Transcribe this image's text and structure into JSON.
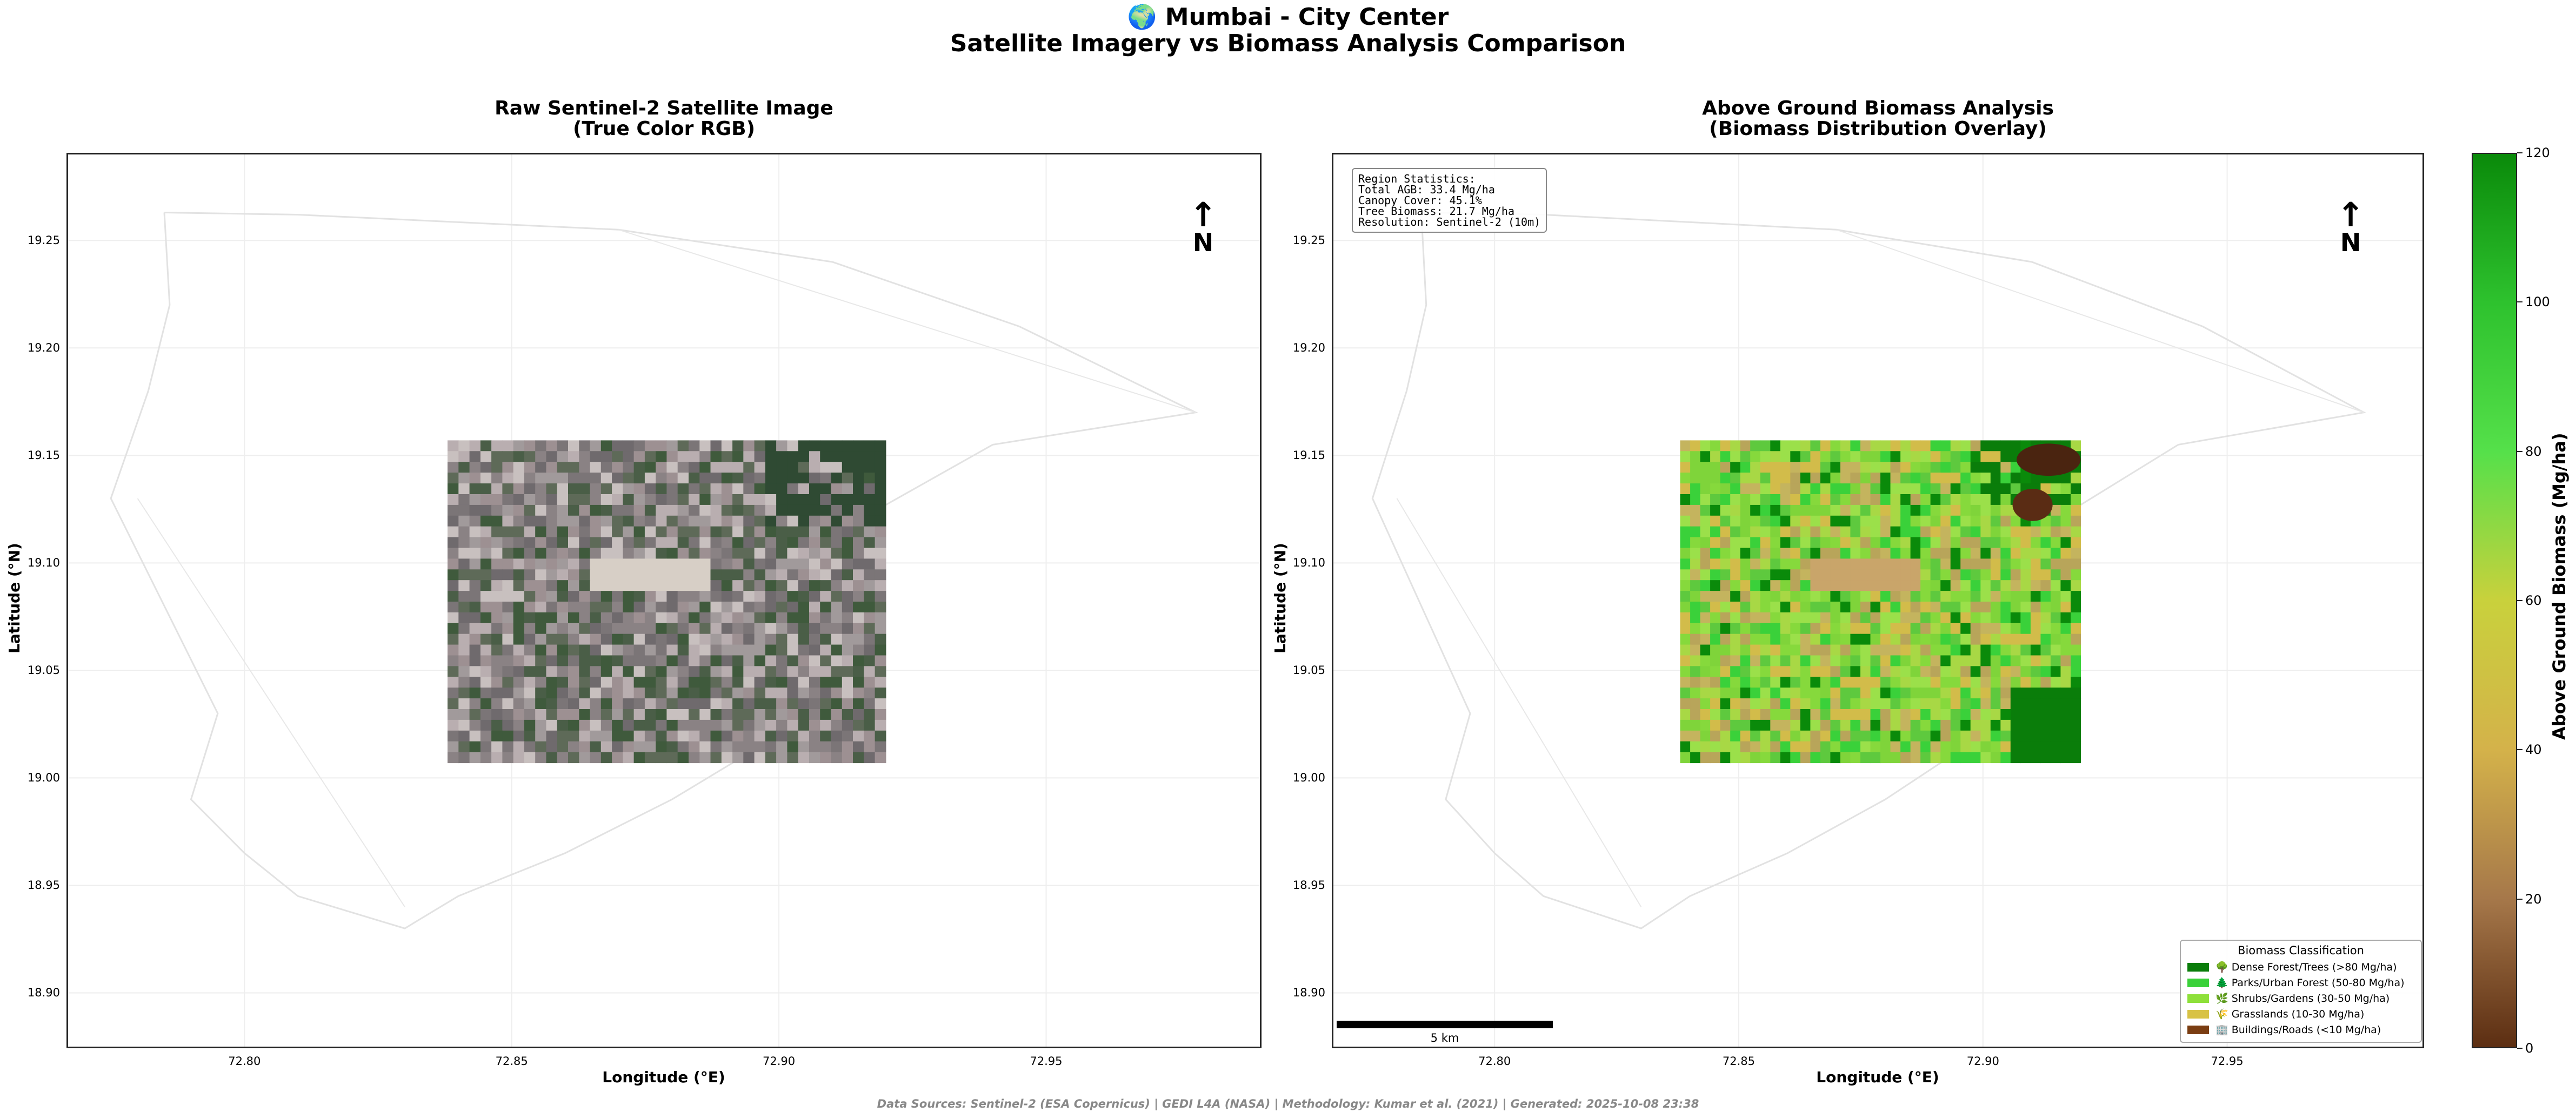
{
  "figure": {
    "title_line1": "🌍 Mumbai - City Center",
    "title_line2": "Satellite Imagery vs Biomass Analysis Comparison",
    "footer": "Data Sources: Sentinel-2 (ESA Copernicus) | GEDI L4A (NASA) | Methodology: Kumar et al. (2021) | Generated: 2025-10-08 23:38"
  },
  "chart_data": [
    {
      "type": "map",
      "title": "Raw Sentinel-2 Satellite Image\n(True Color RGB)",
      "title_line1": "Raw Sentinel-2 Satellite Image",
      "title_line2": "(True Color RGB)",
      "xlabel": "Longitude (°E)",
      "ylabel": "Latitude (°N)",
      "xlim": [
        72.767,
        72.99
      ],
      "ylim": [
        18.875,
        19.29
      ],
      "xticks": [
        "72.80",
        "72.85",
        "72.90",
        "72.95"
      ],
      "xtick_values": [
        72.8,
        72.85,
        72.9,
        72.95
      ],
      "yticks": [
        "18.90",
        "18.95",
        "19.00",
        "19.05",
        "19.10",
        "19.15",
        "19.20",
        "19.25"
      ],
      "ytick_values": [
        18.9,
        18.95,
        19.0,
        19.05,
        19.1,
        19.15,
        19.2,
        19.25
      ],
      "image_extent": {
        "lon": [
          72.838,
          72.92
        ],
        "lat": [
          19.007,
          19.157
        ]
      },
      "grid": true,
      "north_arrow": {
        "symbol": "↑",
        "label": "N"
      }
    },
    {
      "type": "heatmap",
      "title": "Above Ground Biomass Analysis\n(Biomass Distribution Overlay)",
      "title_line1": "Above Ground Biomass Analysis",
      "title_line2": "(Biomass Distribution Overlay)",
      "xlabel": "Longitude (°E)",
      "ylabel": "Latitude (°N)",
      "xlim": [
        72.767,
        72.99
      ],
      "ylim": [
        18.875,
        19.29
      ],
      "xticks": [
        "72.80",
        "72.85",
        "72.90",
        "72.95"
      ],
      "xtick_values": [
        72.8,
        72.85,
        72.9,
        72.95
      ],
      "yticks": [
        "18.90",
        "18.95",
        "19.00",
        "19.05",
        "19.10",
        "19.15",
        "19.20",
        "19.25"
      ],
      "ytick_values": [
        18.9,
        18.95,
        19.0,
        19.05,
        19.1,
        19.15,
        19.2,
        19.25
      ],
      "image_extent": {
        "lon": [
          72.838,
          72.92
        ],
        "lat": [
          19.007,
          19.157
        ]
      },
      "grid": true,
      "north_arrow": {
        "symbol": "↑",
        "label": "N"
      },
      "stats": [
        "Region Statistics:",
        "Total AGB: 33.4 Mg/ha",
        "Canopy Cover: 45.1%",
        "Tree Biomass: 21.7 Mg/ha",
        "Resolution: Sentinel-2 (10m)"
      ],
      "scale_bar": {
        "label": "5 km"
      },
      "legend_placement": "bottom-right",
      "legend": {
        "title": "Biomass Classification",
        "items": [
          {
            "label": "🌳 Dense Forest/Trees (>80 Mg/ha)",
            "color": "#0a7d0a"
          },
          {
            "label": "🌲 Parks/Urban Forest (50-80 Mg/ha)",
            "color": "#3ad13a"
          },
          {
            "label": "🌿 Shrubs/Gardens (30-50 Mg/ha)",
            "color": "#8ee03a"
          },
          {
            "label": "🌾 Grasslands (10-30 Mg/ha)",
            "color": "#d8c245"
          },
          {
            "label": "🏢 Buildings/Roads (<10 Mg/ha)",
            "color": "#7a3d12"
          }
        ]
      },
      "colorbar": {
        "label": "Above Ground Biomass (Mg/ha)",
        "range": [
          0,
          120
        ],
        "ticks": [
          0,
          20,
          40,
          60,
          80,
          100,
          120
        ],
        "colors": [
          "#5c2e12",
          "#a6784a",
          "#d4b24a",
          "#c9d13c",
          "#55e04a",
          "#2ec22e",
          "#0a8a0a"
        ]
      }
    }
  ]
}
